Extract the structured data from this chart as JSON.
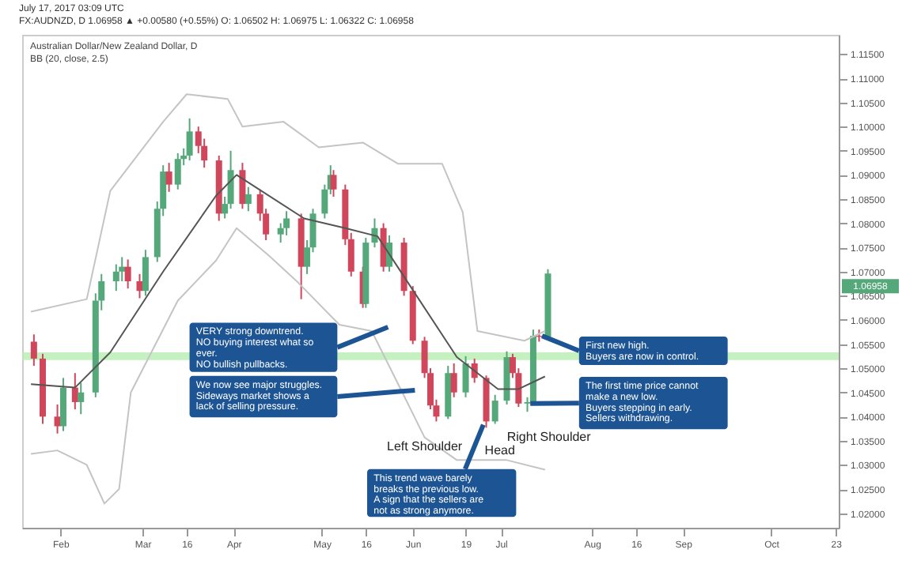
{
  "chart_data": {
    "type": "candlestick",
    "title": "Australian Dollar/New Zealand Dollar, D",
    "subtitle": "BB (20, close, 2.5)",
    "x": [
      "2017-01-23",
      "2017-01-26",
      "2017-01-31",
      "2017-02-02",
      "2017-02-06",
      "2017-02-08",
      "2017-02-13",
      "2017-02-15",
      "2017-02-20",
      "2017-02-22",
      "2017-02-24",
      "2017-02-28",
      "2017-03-02",
      "2017-03-06",
      "2017-03-08",
      "2017-03-10",
      "2017-03-13",
      "2017-03-15",
      "2017-03-17",
      "2017-03-20",
      "2017-03-22",
      "2017-03-27",
      "2017-03-29",
      "2017-03-31",
      "2017-04-04",
      "2017-04-06",
      "2017-04-10",
      "2017-04-12",
      "2017-04-17",
      "2017-04-19",
      "2017-04-24",
      "2017-04-26",
      "2017-04-28",
      "2017-05-02",
      "2017-05-04",
      "2017-05-05",
      "2017-05-09",
      "2017-05-11",
      "2017-05-15",
      "2017-05-16",
      "2017-05-19",
      "2017-05-22",
      "2017-05-24",
      "2017-05-29",
      "2017-06-01",
      "2017-06-05",
      "2017-06-07",
      "2017-06-09",
      "2017-06-13",
      "2017-06-15",
      "2017-06-19",
      "2017-06-22",
      "2017-06-26",
      "2017-06-29",
      "2017-07-03",
      "2017-07-05",
      "2017-07-07",
      "2017-07-10",
      "2017-07-12",
      "2017-07-14",
      "2017-07-17"
    ],
    "ohlc": [
      [
        1.0555,
        1.057,
        1.0505,
        1.052
      ],
      [
        1.052,
        1.053,
        1.0385,
        1.04
      ],
      [
        1.04,
        1.0425,
        1.0365,
        1.038
      ],
      [
        1.038,
        1.048,
        1.037,
        1.046
      ],
      [
        1.046,
        1.049,
        1.0415,
        1.043
      ],
      [
        1.043,
        1.047,
        1.0405,
        1.045
      ],
      [
        1.045,
        1.0655,
        1.044,
        1.064
      ],
      [
        1.064,
        1.0695,
        1.062,
        1.068
      ],
      [
        1.068,
        1.0715,
        1.066,
        1.07
      ],
      [
        1.07,
        1.073,
        1.068,
        1.071
      ],
      [
        1.071,
        1.0725,
        1.0665,
        1.068
      ],
      [
        1.068,
        1.0695,
        1.0645,
        1.066
      ],
      [
        1.066,
        1.0745,
        1.065,
        1.073
      ],
      [
        1.073,
        1.0845,
        1.072,
        1.083
      ],
      [
        1.083,
        1.092,
        1.0815,
        1.0907
      ],
      [
        1.0907,
        1.0925,
        1.0865,
        1.088
      ],
      [
        1.088,
        1.0945,
        1.087,
        1.0933
      ],
      [
        1.0933,
        1.0955,
        1.092,
        1.094
      ],
      [
        1.094,
        1.1017,
        1.093,
        1.099
      ],
      [
        1.099,
        1.1,
        1.0945,
        1.096
      ],
      [
        1.096,
        1.0975,
        1.0915,
        1.093
      ],
      [
        1.093,
        1.094,
        1.0805,
        1.082
      ],
      [
        1.082,
        1.0855,
        1.081,
        1.084
      ],
      [
        1.084,
        1.095,
        1.083,
        1.091
      ],
      [
        1.091,
        1.0925,
        1.083,
        1.084
      ],
      [
        1.084,
        1.0875,
        1.0825,
        1.086
      ],
      [
        1.086,
        1.087,
        1.0805,
        1.082
      ],
      [
        1.082,
        1.083,
        1.0765,
        1.0777
      ],
      [
        1.0777,
        1.08,
        1.076,
        1.079
      ],
      [
        1.079,
        1.0825,
        1.0775,
        1.081
      ],
      [
        1.081,
        1.082,
        1.0643,
        1.071
      ],
      [
        1.071,
        1.0765,
        1.0695,
        1.075
      ],
      [
        1.075,
        1.083,
        1.074,
        1.082
      ],
      [
        1.082,
        1.088,
        1.081,
        1.087
      ],
      [
        1.087,
        1.092,
        1.086,
        1.09
      ],
      [
        1.09,
        1.091,
        1.0855,
        1.087
      ],
      [
        1.087,
        1.088,
        1.0755,
        1.0767
      ],
      [
        1.0767,
        1.078,
        1.069,
        1.07
      ],
      [
        1.07,
        1.071,
        1.0625,
        1.0633
      ],
      [
        1.0633,
        1.077,
        1.0625,
        1.076
      ],
      [
        1.076,
        1.081,
        1.075,
        1.079
      ],
      [
        1.079,
        1.08,
        1.07,
        1.071
      ],
      [
        1.071,
        1.0775,
        1.07,
        1.076
      ],
      [
        1.076,
        1.077,
        1.065,
        1.066
      ],
      [
        1.066,
        1.067,
        1.055,
        1.0557
      ],
      [
        1.0557,
        1.0565,
        1.048,
        1.049
      ],
      [
        1.049,
        1.05,
        1.0415,
        1.0423
      ],
      [
        1.0423,
        1.0435,
        1.039,
        1.04
      ],
      [
        1.04,
        1.0505,
        1.0395,
        1.049
      ],
      [
        1.049,
        1.051,
        1.044,
        1.045
      ],
      [
        1.045,
        1.0525,
        1.044,
        1.051
      ],
      [
        1.051,
        1.052,
        1.047,
        1.048
      ],
      [
        1.048,
        1.0485,
        1.0377,
        1.039
      ],
      [
        1.039,
        1.0445,
        1.0385,
        1.0433
      ],
      [
        1.0433,
        1.0535,
        1.0425,
        1.0523
      ],
      [
        1.0523,
        1.053,
        1.048,
        1.049
      ],
      [
        1.049,
        1.05,
        1.042,
        1.0427
      ],
      [
        1.0427,
        1.044,
        1.041,
        1.043
      ],
      [
        1.043,
        1.058,
        1.0425,
        1.0567
      ],
      [
        1.0567,
        1.058,
        1.0555,
        1.0565
      ],
      [
        1.0565,
        1.0705,
        1.056,
        1.0696
      ]
    ],
    "colors": [
      "#d0465a",
      "#d0465a",
      "#d0465a",
      "#55a87a",
      "#d0465a",
      "#55a87a",
      "#55a87a",
      "#55a87a",
      "#55a87a",
      "#55a87a",
      "#d0465a",
      "#d0465a",
      "#55a87a",
      "#55a87a",
      "#55a87a",
      "#d0465a",
      "#55a87a",
      "#55a87a",
      "#55a87a",
      "#d0465a",
      "#d0465a",
      "#d0465a",
      "#55a87a",
      "#55a87a",
      "#d0465a",
      "#55a87a",
      "#d0465a",
      "#d0465a",
      "#55a87a",
      "#55a87a",
      "#d0465a",
      "#55a87a",
      "#55a87a",
      "#55a87a",
      "#55a87a",
      "#d0465a",
      "#d0465a",
      "#d0465a",
      "#d0465a",
      "#55a87a",
      "#55a87a",
      "#d0465a",
      "#55a87a",
      "#d0465a",
      "#d0465a",
      "#d0465a",
      "#d0465a",
      "#d0465a",
      "#55a87a",
      "#d0465a",
      "#55a87a",
      "#d0465a",
      "#d0465a",
      "#55a87a",
      "#55a87a",
      "#d0465a",
      "#d0465a",
      "#55a87a",
      "#55a87a",
      "#d0465a",
      "#55a87a"
    ],
    "series": [
      {
        "type": "line",
        "color": "#c4c4c4",
        "x": [
          "2017-01-22",
          "2017-02-10",
          "2017-02-18",
          "2017-03-08",
          "2017-03-16",
          "2017-03-30",
          "2017-04-04",
          "2017-04-18",
          "2017-04-30",
          "2017-05-15",
          "2017-05-27",
          "2017-06-11",
          "2017-06-18",
          "2017-06-23",
          "2017-07-09",
          "2017-07-16"
        ],
        "values": [
          1.0617,
          1.0643,
          1.0867,
          1.101,
          1.1067,
          1.1057,
          1.1,
          1.101,
          1.0957,
          1.0967,
          1.0923,
          1.0923,
          1.0823,
          1.0577,
          1.0557,
          1.0577
        ]
      },
      {
        "type": "line",
        "color": "#555555",
        "x": [
          "2017-01-22",
          "2017-02-06",
          "2017-02-18",
          "2017-03-08",
          "2017-03-26",
          "2017-04-02",
          "2017-04-25",
          "2017-05-09",
          "2017-05-20",
          "2017-06-16",
          "2017-06-30",
          "2017-07-07",
          "2017-07-16"
        ],
        "values": [
          1.0467,
          1.046,
          1.0533,
          1.07,
          1.0857,
          1.09,
          1.081,
          1.079,
          1.0773,
          1.0523,
          1.0457,
          1.0457,
          1.0483
        ]
      },
      {
        "type": "line",
        "color": "#c4c4c4",
        "x": [
          "2017-01-22",
          "2017-01-31",
          "2017-02-10",
          "2017-02-16",
          "2017-02-21",
          "2017-02-25",
          "2017-03-13",
          "2017-03-26",
          "2017-04-02",
          "2017-04-13",
          "2017-04-23",
          "2017-05-07",
          "2017-05-18",
          "2017-05-29",
          "2017-06-05",
          "2017-06-16",
          "2017-06-23",
          "2017-07-03",
          "2017-07-16"
        ],
        "values": [
          1.0323,
          1.033,
          1.03,
          1.022,
          1.025,
          1.045,
          1.064,
          1.0723,
          1.079,
          1.0733,
          1.0677,
          1.059,
          1.0577,
          1.0443,
          1.0357,
          1.031,
          1.031,
          1.031,
          1.029
        ]
      }
    ],
    "bands": [
      {
        "axis": "y",
        "from": 1.0517,
        "to": 1.0533,
        "color": "#b6eeb0"
      }
    ],
    "annotations": [
      "July 17, 2017 03:09 UTC",
      "FX:AUDNZD, D 1.06958 ▲ +0.00580 (+0.55%) O: 1.06502 H: 1.06975 L: 1.06322 C: 1.06958",
      "VERY strong downtrend.\nNO buying interest what so ever.\nNO bullish pullbacks.",
      "We now see major struggles.\nSideways market shows a lack of selling pressure.",
      {
        "text": "Left Shoulder",
        "x": "2017-06-05",
        "y": 1.0337
      },
      "Head",
      "Right Shoulder",
      {
        "text": "This trend wave barely breaks the previous low.\nA sign that the sellers are not as strong anymore.",
        "x": "2017-06-25",
        "y": 1.0383
      },
      {
        "text": "First new high.\nBuyers are now in control.",
        "x": "2017-07-15",
        "y": 1.0567
      },
      {
        "text": "The first time price cannot make a new low.\nBuyers stepping in early.\nSellers withdrawing.",
        "x": "2017-07-11",
        "y": 1.0427
      },
      "1.06958"
    ],
    "xlim": [
      "2017-01-19",
      "2017-10-24"
    ],
    "xticks": [
      {
        "value": "2017-02-01",
        "label": "Feb"
      },
      {
        "value": "2017-03-01",
        "label": "Mar"
      },
      {
        "value": "2017-03-16",
        "label": "16"
      },
      {
        "value": "2017-04-01",
        "label": "Apr"
      },
      {
        "value": "2017-05-01",
        "label": "May"
      },
      {
        "value": "2017-05-16",
        "label": "16"
      },
      {
        "value": "2017-06-01",
        "label": "Jun"
      },
      {
        "value": "2017-06-19",
        "label": "19"
      },
      {
        "value": "2017-07-01",
        "label": "Jul"
      },
      {
        "value": "2017-08-01",
        "label": "Aug"
      },
      {
        "value": "2017-08-16",
        "label": "16"
      },
      {
        "value": "2017-09-01",
        "label": "Sep"
      },
      {
        "value": "2017-10-01",
        "label": "Oct"
      },
      {
        "value": "2017-10-23",
        "label": "23"
      }
    ],
    "ylim": [
      1.017,
      1.119
    ],
    "yticks": [
      {
        "value": 1.02,
        "label": "1.02000"
      },
      {
        "value": 1.025,
        "label": "1.02500"
      },
      {
        "value": 1.03,
        "label": "1.03000"
      },
      {
        "value": 1.035,
        "label": "1.03500"
      },
      {
        "value": 1.04,
        "label": "1.04000"
      },
      {
        "value": 1.045,
        "label": "1.04500"
      },
      {
        "value": 1.05,
        "label": "1.05000"
      },
      {
        "value": 1.055,
        "label": "1.05500"
      },
      {
        "value": 1.06,
        "label": "1.06000"
      },
      {
        "value": 1.065,
        "label": "1.06500"
      },
      {
        "value": 1.07,
        "label": "1.07000"
      },
      {
        "value": 1.075,
        "label": "1.07500"
      },
      {
        "value": 1.08,
        "label": "1.08000"
      },
      {
        "value": 1.085,
        "label": "1.08500"
      },
      {
        "value": 1.09,
        "label": "1.09000"
      },
      {
        "value": 1.095,
        "label": "1.09500"
      },
      {
        "value": 1.1,
        "label": "1.10000"
      },
      {
        "value": 1.105,
        "label": "1.10500"
      },
      {
        "value": 1.11,
        "label": "1.11000"
      },
      {
        "value": 1.115,
        "label": "1.11500"
      }
    ]
  }
}
